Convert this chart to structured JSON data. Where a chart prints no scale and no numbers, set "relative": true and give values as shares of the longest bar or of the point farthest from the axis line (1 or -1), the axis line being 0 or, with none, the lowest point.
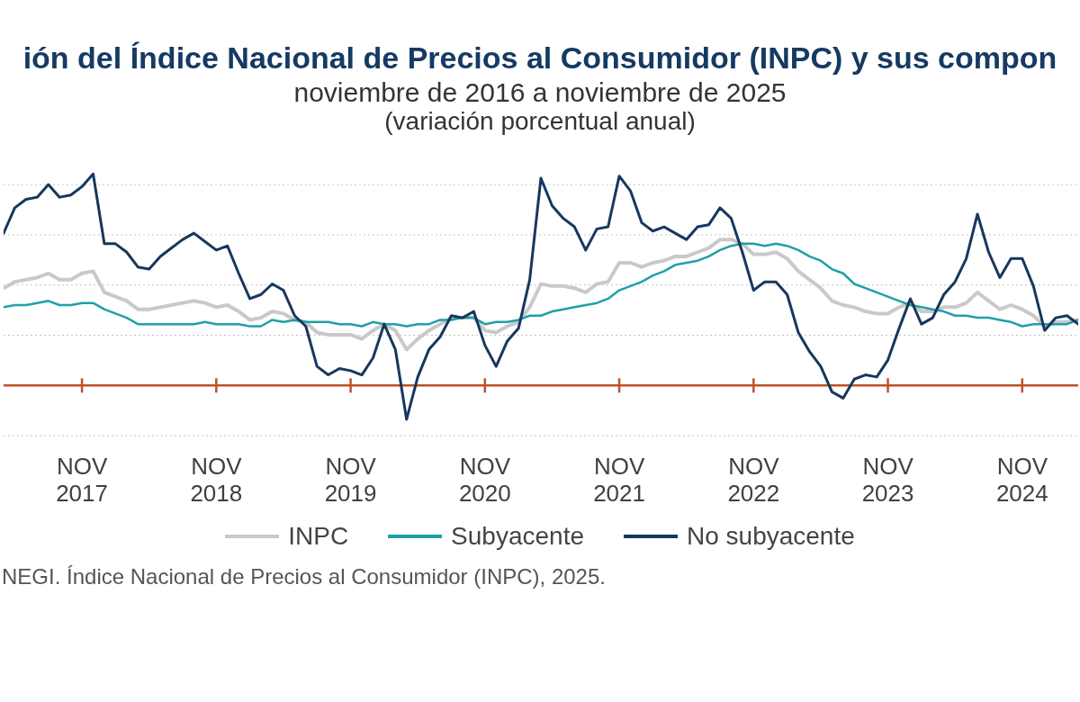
{
  "chart_data": {
    "type": "line",
    "title": "ión del Índice Nacional de Precios al Consumidor (INPC) y sus compon",
    "subtitle": "noviembre de 2016 a noviembre de 2025\n(variación porcentual anual)",
    "x": [
      "2017-04",
      "2017-05",
      "2017-06",
      "2017-07",
      "2017-08",
      "2017-09",
      "2017-10",
      "2017-11",
      "2017-12",
      "2018-01",
      "2018-02",
      "2018-03",
      "2018-04",
      "2018-05",
      "2018-06",
      "2018-07",
      "2018-08",
      "2018-09",
      "2018-10",
      "2018-11",
      "2018-12",
      "2019-01",
      "2019-02",
      "2019-03",
      "2019-04",
      "2019-05",
      "2019-06",
      "2019-07",
      "2019-08",
      "2019-09",
      "2019-10",
      "2019-11",
      "2019-12",
      "2020-01",
      "2020-02",
      "2020-03",
      "2020-04",
      "2020-05",
      "2020-06",
      "2020-07",
      "2020-08",
      "2020-09",
      "2020-10",
      "2020-11",
      "2020-12",
      "2021-01",
      "2021-02",
      "2021-03",
      "2021-04",
      "2021-05",
      "2021-06",
      "2021-07",
      "2021-08",
      "2021-09",
      "2021-10",
      "2021-11",
      "2021-12",
      "2022-01",
      "2022-02",
      "2022-03",
      "2022-04",
      "2022-05",
      "2022-06",
      "2022-07",
      "2022-08",
      "2022-09",
      "2022-10",
      "2022-11",
      "2022-12",
      "2023-01",
      "2023-02",
      "2023-03",
      "2023-04",
      "2023-05",
      "2023-06",
      "2023-07",
      "2023-08",
      "2023-09",
      "2023-10",
      "2023-11",
      "2023-12",
      "2024-01",
      "2024-02",
      "2024-03",
      "2024-04",
      "2024-05",
      "2024-06",
      "2024-07",
      "2024-08",
      "2024-09",
      "2024-10",
      "2024-11",
      "2024-12",
      "2025-01",
      "2025-02",
      "2025-03",
      "2025-04"
    ],
    "xlim": [
      "2017-04",
      "2025-04"
    ],
    "xticks": [
      {
        "value": "2017-11",
        "label": "NOV\n2017"
      },
      {
        "value": "2018-11",
        "label": "NOV\n2018"
      },
      {
        "value": "2019-11",
        "label": "NOV\n2019"
      },
      {
        "value": "2020-11",
        "label": "NOV\n2020"
      },
      {
        "value": "2021-11",
        "label": "NOV\n2021"
      },
      {
        "value": "2022-11",
        "label": "NOV\n2022"
      },
      {
        "value": "2023-11",
        "label": "NOV\n2023"
      },
      {
        "value": "2024-11",
        "label": "NOV\n2024"
      }
    ],
    "relative": true,
    "series": [
      {
        "name": "INPC",
        "color": "#c9c9c9",
        "values": [
          0.46,
          0.49,
          0.5,
          0.51,
          0.53,
          0.5,
          0.5,
          0.53,
          0.54,
          0.44,
          0.42,
          0.4,
          0.36,
          0.36,
          0.37,
          0.38,
          0.39,
          0.4,
          0.39,
          0.37,
          0.38,
          0.35,
          0.31,
          0.32,
          0.35,
          0.34,
          0.31,
          0.3,
          0.25,
          0.24,
          0.24,
          0.24,
          0.22,
          0.26,
          0.29,
          0.26,
          0.17,
          0.22,
          0.26,
          0.29,
          0.32,
          0.32,
          0.32,
          0.26,
          0.25,
          0.28,
          0.3,
          0.37,
          0.48,
          0.47,
          0.47,
          0.46,
          0.44,
          0.48,
          0.49,
          0.58,
          0.58,
          0.56,
          0.58,
          0.59,
          0.61,
          0.61,
          0.63,
          0.65,
          0.69,
          0.69,
          0.67,
          0.62,
          0.62,
          0.63,
          0.6,
          0.54,
          0.5,
          0.46,
          0.4,
          0.38,
          0.37,
          0.35,
          0.34,
          0.34,
          0.37,
          0.39,
          0.35,
          0.35,
          0.37,
          0.37,
          0.39,
          0.44,
          0.4,
          0.36,
          0.38,
          0.36,
          0.33,
          0.28,
          0.3,
          0.3,
          0.31
        ]
      },
      {
        "name": "Subyacente",
        "color": "#1fa0a8",
        "values": [
          0.37,
          0.38,
          0.38,
          0.39,
          0.4,
          0.38,
          0.38,
          0.39,
          0.39,
          0.36,
          0.34,
          0.32,
          0.29,
          0.29,
          0.29,
          0.29,
          0.29,
          0.29,
          0.3,
          0.29,
          0.29,
          0.29,
          0.28,
          0.28,
          0.31,
          0.3,
          0.31,
          0.3,
          0.3,
          0.3,
          0.29,
          0.29,
          0.28,
          0.3,
          0.29,
          0.29,
          0.28,
          0.29,
          0.29,
          0.31,
          0.31,
          0.32,
          0.32,
          0.29,
          0.3,
          0.3,
          0.31,
          0.33,
          0.33,
          0.35,
          0.36,
          0.37,
          0.38,
          0.39,
          0.41,
          0.45,
          0.47,
          0.49,
          0.52,
          0.54,
          0.57,
          0.58,
          0.59,
          0.61,
          0.64,
          0.66,
          0.67,
          0.67,
          0.66,
          0.67,
          0.66,
          0.64,
          0.61,
          0.59,
          0.55,
          0.53,
          0.48,
          0.46,
          0.44,
          0.42,
          0.4,
          0.38,
          0.37,
          0.36,
          0.35,
          0.33,
          0.33,
          0.32,
          0.32,
          0.31,
          0.3,
          0.28,
          0.29,
          0.29,
          0.29,
          0.29,
          0.31
        ]
      },
      {
        "name": "No subyacente",
        "color": "#17375e",
        "values": [
          0.72,
          0.84,
          0.88,
          0.89,
          0.95,
          0.89,
          0.9,
          0.94,
          1,
          0.67,
          0.67,
          0.63,
          0.56,
          0.55,
          0.61,
          0.65,
          0.69,
          0.72,
          0.68,
          0.64,
          0.66,
          0.53,
          0.41,
          0.43,
          0.48,
          0.45,
          0.33,
          0.28,
          0.09,
          0.05,
          0.08,
          0.07,
          0.05,
          0.13,
          0.29,
          0.17,
          -0.16,
          0.04,
          0.17,
          0.23,
          0.33,
          0.32,
          0.35,
          0.19,
          0.09,
          0.21,
          0.27,
          0.5,
          0.98,
          0.85,
          0.79,
          0.75,
          0.64,
          0.74,
          0.75,
          0.99,
          0.92,
          0.77,
          0.73,
          0.75,
          0.72,
          0.69,
          0.75,
          0.76,
          0.84,
          0.79,
          0.63,
          0.45,
          0.49,
          0.49,
          0.43,
          0.25,
          0.16,
          0.09,
          -0.03,
          -0.06,
          0.03,
          0.05,
          0.04,
          0.12,
          0.27,
          0.41,
          0.29,
          0.32,
          0.43,
          0.49,
          0.6,
          0.81,
          0.63,
          0.51,
          0.6,
          0.6,
          0.47,
          0.26,
          0.32,
          0.33,
          0.29
        ]
      }
    ],
    "ref_lines": [
      {
        "axis": "y",
        "value": 0,
        "color": "#c0502a"
      }
    ],
    "grid": "y",
    "legend": "bottom",
    "annotations": [
      "NEGI. Índice Nacional de Precios al Consumidor (INPC), 2025."
    ]
  }
}
